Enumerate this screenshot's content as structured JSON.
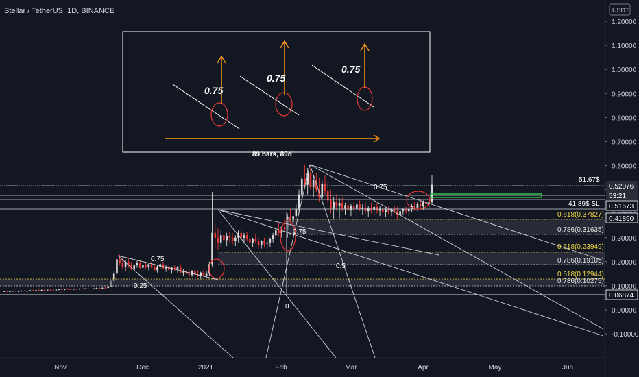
{
  "header": {
    "symbol_title": "Stellar / TetherUS, 1D, BINANCE",
    "currency": "USDT"
  },
  "chart_data": {
    "type": "candlestick",
    "title": "Stellar / TetherUS, 1D, BINANCE",
    "y_axis": {
      "position": "right",
      "ticks": [
        1.2,
        1.1,
        1.0,
        0.9,
        0.8,
        0.7,
        0.6,
        0.5,
        0.4,
        0.3,
        0.2,
        0.1,
        0.0,
        -0.1
      ],
      "tick_labels": [
        "1.20000",
        "1.10000",
        "1.00000",
        "0.90000",
        "0.80000",
        "0.70000",
        "0.60000",
        "0.50000",
        "0.40000",
        "0.30000",
        "0.20000",
        "0.10000",
        "0.00000",
        "-0.10000"
      ],
      "range": [
        -0.14,
        1.26
      ]
    },
    "x_axis": {
      "tick_labels": [
        "Nov",
        "Dec",
        "2021",
        "Feb",
        "Mar",
        "Apr",
        "May",
        "Jun"
      ]
    },
    "grid": false,
    "price_tags": [
      {
        "value": 0.52076,
        "text": "0.52076",
        "style": "filled"
      },
      {
        "value": 0.5,
        "text": "53:21",
        "style": "filled"
      },
      {
        "value": 0.51673,
        "text": "0.51673",
        "style": "boxed"
      },
      {
        "value": 0.4189,
        "text": "0.41890",
        "style": "boxed"
      },
      {
        "value": 0.06874,
        "text": "0.06874",
        "style": "boxed"
      }
    ],
    "horizontal_levels": [
      0.5505,
      0.526,
      0.509,
      0.486,
      0.4189,
      0.06874
    ],
    "annotations": {
      "target_label": "51.67$",
      "stop_label": "41.89$ SL",
      "fib_labels": [
        {
          "text": "0.618(0.37827)",
          "value": 0.37827,
          "color": "yellow"
        },
        {
          "text": "0.786(0.31635)",
          "value": 0.31635,
          "color": "white"
        },
        {
          "text": "0.618(0.23949)",
          "value": 0.23949,
          "color": "yellow"
        },
        {
          "text": "0.786(0.19105)",
          "value": 0.19105,
          "color": "white"
        },
        {
          "text": "0.618(0.12944)",
          "value": 0.12944,
          "color": "yellow"
        },
        {
          "text": "0.786(0.10275)",
          "value": 0.10275,
          "color": "white"
        }
      ],
      "fan_labels": [
        "0.75",
        "0.25",
        "0.75",
        "0.75",
        "0.5",
        "0"
      ],
      "measure_label": "89 bars, 89d",
      "inset_labels": [
        "0.75",
        "0.75",
        "0.75"
      ]
    },
    "candles": [
      [
        0.076,
        0.079,
        0.074,
        0.078
      ],
      [
        0.078,
        0.08,
        0.075,
        0.076
      ],
      [
        0.076,
        0.078,
        0.073,
        0.077
      ],
      [
        0.077,
        0.08,
        0.075,
        0.079
      ],
      [
        0.079,
        0.081,
        0.076,
        0.077
      ],
      [
        0.077,
        0.079,
        0.074,
        0.078
      ],
      [
        0.078,
        0.081,
        0.076,
        0.08
      ],
      [
        0.08,
        0.082,
        0.077,
        0.078
      ],
      [
        0.078,
        0.08,
        0.075,
        0.079
      ],
      [
        0.079,
        0.083,
        0.077,
        0.081
      ],
      [
        0.081,
        0.084,
        0.079,
        0.08
      ],
      [
        0.08,
        0.082,
        0.077,
        0.082
      ],
      [
        0.082,
        0.085,
        0.08,
        0.081
      ],
      [
        0.081,
        0.084,
        0.079,
        0.083
      ],
      [
        0.083,
        0.086,
        0.081,
        0.082
      ],
      [
        0.082,
        0.084,
        0.079,
        0.084
      ],
      [
        0.084,
        0.086,
        0.081,
        0.083
      ],
      [
        0.083,
        0.085,
        0.08,
        0.082
      ],
      [
        0.082,
        0.085,
        0.08,
        0.084
      ],
      [
        0.084,
        0.088,
        0.082,
        0.086
      ],
      [
        0.086,
        0.089,
        0.083,
        0.085
      ],
      [
        0.085,
        0.087,
        0.082,
        0.087
      ],
      [
        0.087,
        0.09,
        0.085,
        0.086
      ],
      [
        0.086,
        0.088,
        0.083,
        0.085
      ],
      [
        0.085,
        0.088,
        0.083,
        0.087
      ],
      [
        0.087,
        0.089,
        0.084,
        0.086
      ],
      [
        0.086,
        0.089,
        0.084,
        0.088
      ],
      [
        0.088,
        0.091,
        0.086,
        0.087
      ],
      [
        0.087,
        0.09,
        0.085,
        0.089
      ],
      [
        0.089,
        0.092,
        0.086,
        0.088
      ],
      [
        0.088,
        0.09,
        0.085,
        0.087
      ],
      [
        0.087,
        0.09,
        0.085,
        0.089
      ],
      [
        0.089,
        0.093,
        0.087,
        0.091
      ],
      [
        0.091,
        0.094,
        0.088,
        0.09
      ],
      [
        0.09,
        0.093,
        0.088,
        0.092
      ],
      [
        0.092,
        0.095,
        0.089,
        0.091
      ],
      [
        0.091,
        0.1,
        0.09,
        0.098
      ],
      [
        0.098,
        0.125,
        0.095,
        0.12
      ],
      [
        0.12,
        0.16,
        0.11,
        0.15
      ],
      [
        0.15,
        0.225,
        0.14,
        0.21
      ],
      [
        0.21,
        0.23,
        0.185,
        0.195
      ],
      [
        0.195,
        0.215,
        0.17,
        0.18
      ],
      [
        0.18,
        0.205,
        0.16,
        0.2
      ],
      [
        0.2,
        0.215,
        0.175,
        0.185
      ],
      [
        0.185,
        0.2,
        0.165,
        0.17
      ],
      [
        0.17,
        0.19,
        0.16,
        0.185
      ],
      [
        0.185,
        0.205,
        0.175,
        0.195
      ],
      [
        0.195,
        0.205,
        0.17,
        0.175
      ],
      [
        0.175,
        0.19,
        0.16,
        0.185
      ],
      [
        0.185,
        0.2,
        0.17,
        0.178
      ],
      [
        0.178,
        0.195,
        0.165,
        0.19
      ],
      [
        0.19,
        0.2,
        0.172,
        0.176
      ],
      [
        0.176,
        0.19,
        0.16,
        0.165
      ],
      [
        0.165,
        0.185,
        0.155,
        0.18
      ],
      [
        0.18,
        0.198,
        0.17,
        0.19
      ],
      [
        0.19,
        0.2,
        0.168,
        0.172
      ],
      [
        0.172,
        0.185,
        0.158,
        0.18
      ],
      [
        0.18,
        0.19,
        0.162,
        0.166
      ],
      [
        0.166,
        0.18,
        0.15,
        0.175
      ],
      [
        0.175,
        0.188,
        0.16,
        0.168
      ],
      [
        0.168,
        0.182,
        0.155,
        0.178
      ],
      [
        0.178,
        0.19,
        0.15,
        0.155
      ],
      [
        0.155,
        0.17,
        0.14,
        0.16
      ],
      [
        0.16,
        0.175,
        0.145,
        0.15
      ],
      [
        0.15,
        0.168,
        0.135,
        0.145
      ],
      [
        0.145,
        0.165,
        0.138,
        0.16
      ],
      [
        0.16,
        0.172,
        0.14,
        0.148
      ],
      [
        0.148,
        0.165,
        0.136,
        0.14
      ],
      [
        0.14,
        0.158,
        0.13,
        0.155
      ],
      [
        0.155,
        0.165,
        0.138,
        0.142
      ],
      [
        0.142,
        0.16,
        0.135,
        0.15
      ],
      [
        0.15,
        0.2,
        0.14,
        0.19
      ],
      [
        0.19,
        0.49,
        0.18,
        0.32
      ],
      [
        0.32,
        0.36,
        0.26,
        0.3
      ],
      [
        0.3,
        0.34,
        0.25,
        0.28
      ],
      [
        0.28,
        0.33,
        0.26,
        0.31
      ],
      [
        0.31,
        0.33,
        0.27,
        0.29
      ],
      [
        0.29,
        0.32,
        0.265,
        0.305
      ],
      [
        0.305,
        0.325,
        0.28,
        0.3
      ],
      [
        0.3,
        0.32,
        0.27,
        0.285
      ],
      [
        0.285,
        0.31,
        0.265,
        0.3
      ],
      [
        0.3,
        0.33,
        0.28,
        0.32
      ],
      [
        0.32,
        0.34,
        0.29,
        0.3
      ],
      [
        0.3,
        0.32,
        0.275,
        0.31
      ],
      [
        0.31,
        0.325,
        0.285,
        0.295
      ],
      [
        0.295,
        0.31,
        0.27,
        0.28
      ],
      [
        0.28,
        0.3,
        0.26,
        0.295
      ],
      [
        0.295,
        0.315,
        0.275,
        0.285
      ],
      [
        0.285,
        0.3,
        0.255,
        0.27
      ],
      [
        0.27,
        0.29,
        0.255,
        0.285
      ],
      [
        0.285,
        0.3,
        0.26,
        0.275
      ],
      [
        0.275,
        0.292,
        0.255,
        0.28
      ],
      [
        0.28,
        0.3,
        0.262,
        0.295
      ],
      [
        0.295,
        0.32,
        0.28,
        0.31
      ],
      [
        0.31,
        0.345,
        0.295,
        0.33
      ],
      [
        0.33,
        0.36,
        0.305,
        0.32
      ],
      [
        0.32,
        0.35,
        0.3,
        0.345
      ],
      [
        0.345,
        0.38,
        0.32,
        0.335
      ],
      [
        0.335,
        0.4,
        0.3,
        0.385
      ],
      [
        0.385,
        0.42,
        0.35,
        0.365
      ],
      [
        0.365,
        0.4,
        0.34,
        0.39
      ],
      [
        0.39,
        0.44,
        0.37,
        0.42
      ],
      [
        0.42,
        0.5,
        0.4,
        0.48
      ],
      [
        0.48,
        0.56,
        0.45,
        0.545
      ],
      [
        0.545,
        0.605,
        0.51,
        0.52
      ],
      [
        0.52,
        0.59,
        0.48,
        0.57
      ],
      [
        0.57,
        0.59,
        0.5,
        0.51
      ],
      [
        0.51,
        0.56,
        0.47,
        0.54
      ],
      [
        0.54,
        0.57,
        0.49,
        0.5
      ],
      [
        0.5,
        0.55,
        0.45,
        0.47
      ],
      [
        0.47,
        0.54,
        0.44,
        0.525
      ],
      [
        0.525,
        0.56,
        0.48,
        0.495
      ],
      [
        0.495,
        0.53,
        0.44,
        0.455
      ],
      [
        0.455,
        0.5,
        0.4,
        0.42
      ],
      [
        0.42,
        0.47,
        0.38,
        0.45
      ],
      [
        0.45,
        0.48,
        0.41,
        0.43
      ],
      [
        0.43,
        0.465,
        0.38,
        0.445
      ],
      [
        0.445,
        0.47,
        0.41,
        0.42
      ],
      [
        0.42,
        0.445,
        0.395,
        0.435
      ],
      [
        0.435,
        0.455,
        0.405,
        0.415
      ],
      [
        0.415,
        0.44,
        0.39,
        0.43
      ],
      [
        0.43,
        0.45,
        0.405,
        0.42
      ],
      [
        0.42,
        0.445,
        0.395,
        0.438
      ],
      [
        0.438,
        0.455,
        0.41,
        0.418
      ],
      [
        0.418,
        0.44,
        0.395,
        0.425
      ],
      [
        0.425,
        0.445,
        0.4,
        0.41
      ],
      [
        0.41,
        0.43,
        0.385,
        0.425
      ],
      [
        0.425,
        0.445,
        0.4,
        0.415
      ],
      [
        0.415,
        0.435,
        0.395,
        0.428
      ],
      [
        0.428,
        0.445,
        0.4,
        0.412
      ],
      [
        0.412,
        0.43,
        0.39,
        0.42
      ],
      [
        0.42,
        0.438,
        0.398,
        0.405
      ],
      [
        0.405,
        0.425,
        0.385,
        0.418
      ],
      [
        0.418,
        0.432,
        0.395,
        0.408
      ],
      [
        0.408,
        0.425,
        0.39,
        0.42
      ],
      [
        0.42,
        0.435,
        0.4,
        0.41
      ],
      [
        0.41,
        0.428,
        0.38,
        0.395
      ],
      [
        0.395,
        0.415,
        0.37,
        0.41
      ],
      [
        0.41,
        0.425,
        0.395,
        0.418
      ],
      [
        0.418,
        0.43,
        0.4,
        0.41
      ],
      [
        0.41,
        0.428,
        0.392,
        0.42
      ],
      [
        0.42,
        0.44,
        0.405,
        0.432
      ],
      [
        0.432,
        0.45,
        0.412,
        0.425
      ],
      [
        0.425,
        0.448,
        0.41,
        0.44
      ],
      [
        0.44,
        0.46,
        0.42,
        0.43
      ],
      [
        0.43,
        0.455,
        0.415,
        0.45
      ],
      [
        0.45,
        0.5,
        0.43,
        0.44
      ],
      [
        0.44,
        0.47,
        0.42,
        0.45
      ],
      [
        0.45,
        0.56,
        0.44,
        0.52
      ]
    ]
  }
}
